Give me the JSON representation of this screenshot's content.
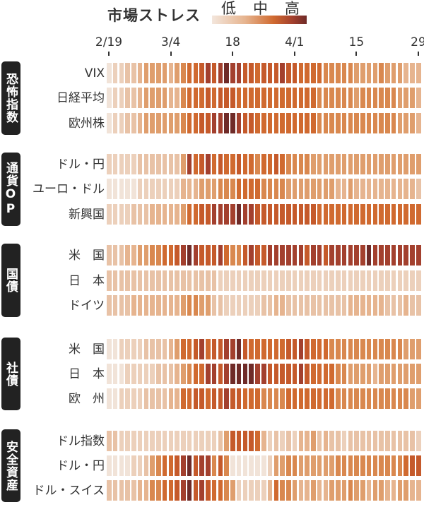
{
  "chart_data": {
    "type": "heatmap",
    "title": "市場ストレス",
    "legend": {
      "labels": [
        "低",
        "中",
        "高"
      ],
      "placement": "top-right"
    },
    "scale": {
      "min": 0,
      "max": 9
    },
    "colors": [
      "#f1e3d8",
      "#ecd0bb",
      "#e8c2a6",
      "#e6b48f",
      "#df9e6d",
      "#d9884f",
      "#d06a30",
      "#c55a2b",
      "#a3402e",
      "#6f2b28"
    ],
    "x_ticks": [
      {
        "index": 0,
        "label": "2/19"
      },
      {
        "index": 10,
        "label": "3/4"
      },
      {
        "index": 20,
        "label": "18"
      },
      {
        "index": 30,
        "label": "4/1"
      },
      {
        "index": 40,
        "label": "15"
      },
      {
        "index": 50,
        "label": "29"
      }
    ],
    "n_columns": 51,
    "groups": [
      {
        "label": "恐怖指数",
        "rows": [
          {
            "label": "VIX",
            "values": [
              0,
              1,
              1,
              2,
              2,
              3,
              4,
              4,
              4,
              4,
              3,
              4,
              5,
              6,
              6,
              7,
              8,
              7,
              8,
              9,
              8,
              8,
              7,
              7,
              6,
              7,
              7,
              7,
              8,
              7,
              7,
              6,
              6,
              6,
              6,
              5,
              5,
              5,
              5,
              5,
              4,
              4,
              4,
              4,
              5,
              4,
              4,
              4,
              3,
              3,
              3
            ]
          },
          {
            "label": "日経平均",
            "values": [
              0,
              1,
              1,
              2,
              2,
              3,
              4,
              4,
              4,
              4,
              3,
              3,
              5,
              6,
              6,
              6,
              7,
              6,
              7,
              7,
              7,
              6,
              6,
              6,
              6,
              6,
              6,
              6,
              6,
              6,
              6,
              6,
              6,
              6,
              5,
              5,
              5,
              5,
              5,
              5,
              4,
              5,
              5,
              5,
              5,
              5,
              5,
              4,
              4,
              4,
              3
            ]
          },
          {
            "label": "欧州株",
            "values": [
              0,
              1,
              1,
              2,
              2,
              3,
              4,
              4,
              4,
              4,
              4,
              4,
              5,
              6,
              6,
              7,
              7,
              8,
              8,
              9,
              9,
              8,
              7,
              7,
              6,
              6,
              6,
              6,
              6,
              6,
              6,
              6,
              6,
              6,
              5,
              5,
              5,
              5,
              5,
              5,
              5,
              5,
              5,
              5,
              5,
              5,
              5,
              4,
              4,
              4,
              3
            ]
          }
        ]
      },
      {
        "label": "通貨OP",
        "rows": [
          {
            "label": "ドル・円",
            "values": [
              1,
              1,
              1,
              1,
              1,
              2,
              2,
              2,
              2,
              2,
              2,
              2,
              4,
              8,
              6,
              7,
              8,
              6,
              7,
              6,
              6,
              7,
              6,
              6,
              5,
              6,
              6,
              7,
              6,
              5,
              5,
              5,
              5,
              4,
              4,
              4,
              4,
              4,
              4,
              4,
              4,
              4,
              4,
              4,
              4,
              4,
              4,
              4,
              4,
              4,
              4
            ]
          },
          {
            "label": "ユーロ・ドル",
            "values": [
              0,
              0,
              0,
              0,
              0,
              1,
              1,
              1,
              1,
              1,
              1,
              1,
              3,
              3,
              3,
              4,
              4,
              4,
              5,
              5,
              5,
              6,
              6,
              6,
              6,
              5,
              5,
              5,
              5,
              4,
              4,
              4,
              4,
              4,
              4,
              4,
              4,
              3,
              3,
              4,
              3,
              3,
              3,
              3,
              3,
              3,
              3,
              3,
              3,
              3,
              2
            ]
          },
          {
            "label": "新興国",
            "values": [
              1,
              1,
              1,
              1,
              2,
              2,
              2,
              3,
              3,
              3,
              3,
              3,
              4,
              6,
              6,
              7,
              7,
              8,
              8,
              8,
              8,
              9,
              8,
              8,
              7,
              7,
              7,
              7,
              7,
              7,
              7,
              7,
              7,
              7,
              6,
              6,
              6,
              6,
              6,
              6,
              6,
              6,
              6,
              6,
              6,
              6,
              6,
              6,
              6,
              6,
              6
            ]
          }
        ]
      },
      {
        "label": "国債",
        "rows": [
          {
            "label": "米　国",
            "values": [
              2,
              2,
              2,
              3,
              3,
              4,
              4,
              5,
              5,
              6,
              6,
              7,
              8,
              9,
              8,
              7,
              7,
              7,
              8,
              6,
              5,
              5,
              7,
              8,
              7,
              7,
              8,
              8,
              8,
              8,
              8,
              8,
              7,
              8,
              8,
              7,
              8,
              8,
              8,
              8,
              8,
              8,
              9,
              8,
              8,
              8,
              8,
              8,
              8,
              8,
              8
            ]
          },
          {
            "label": "日　本",
            "values": [
              2,
              2,
              2,
              2,
              2,
              2,
              2,
              2,
              2,
              2,
              2,
              2,
              2,
              2,
              2,
              2,
              2,
              2,
              1,
              1,
              1,
              1,
              1,
              1,
              1,
              1,
              1,
              1,
              1,
              1,
              1,
              1,
              1,
              1,
              1,
              1,
              1,
              1,
              1,
              1,
              1,
              1,
              1,
              1,
              1,
              1,
              1,
              1,
              1,
              1,
              1
            ]
          },
          {
            "label": "ドイツ",
            "values": [
              2,
              2,
              2,
              2,
              3,
              3,
              3,
              3,
              3,
              3,
              3,
              3,
              4,
              5,
              5,
              4,
              4,
              2,
              2,
              1,
              1,
              1,
              1,
              1,
              1,
              2,
              2,
              3,
              3,
              2,
              2,
              2,
              2,
              2,
              2,
              2,
              2,
              2,
              2,
              3,
              3,
              3,
              3,
              3,
              3,
              2,
              2,
              2,
              3,
              2,
              2
            ]
          }
        ]
      },
      {
        "label": "社債",
        "rows": [
          {
            "label": "米　国",
            "values": [
              0,
              0,
              1,
              1,
              1,
              1,
              2,
              2,
              2,
              2,
              3,
              4,
              6,
              6,
              7,
              8,
              6,
              7,
              7,
              8,
              8,
              9,
              7,
              6,
              6,
              6,
              6,
              6,
              6,
              7,
              7,
              8,
              7,
              6,
              6,
              6,
              5,
              5,
              5,
              5,
              5,
              5,
              5,
              5,
              5,
              5,
              5,
              5,
              4,
              4,
              4
            ]
          },
          {
            "label": "日　本",
            "values": [
              0,
              0,
              0,
              1,
              1,
              1,
              1,
              1,
              2,
              2,
              2,
              3,
              4,
              5,
              6,
              6,
              8,
              8,
              7,
              8,
              9,
              9,
              9,
              9,
              8,
              8,
              7,
              7,
              7,
              7,
              7,
              8,
              7,
              6,
              6,
              6,
              6,
              5,
              5,
              4,
              4,
              4,
              4,
              3,
              4,
              4,
              4,
              4,
              4,
              4,
              4
            ]
          },
          {
            "label": "欧　州",
            "values": [
              0,
              0,
              1,
              1,
              1,
              1,
              2,
              2,
              2,
              2,
              3,
              3,
              6,
              6,
              7,
              7,
              6,
              7,
              7,
              8,
              7,
              7,
              6,
              6,
              6,
              5,
              5,
              5,
              5,
              6,
              6,
              6,
              6,
              6,
              6,
              6,
              6,
              5,
              5,
              5,
              5,
              5,
              5,
              5,
              5,
              5,
              5,
              5,
              5,
              4,
              4
            ]
          }
        ]
      },
      {
        "label": "安全資産",
        "rows": [
          {
            "label": "ドル指数",
            "values": [
              2,
              2,
              1,
              1,
              1,
              1,
              1,
              1,
              1,
              1,
              1,
              1,
              1,
              1,
              1,
              1,
              1,
              1,
              2,
              4,
              7,
              7,
              7,
              7,
              6,
              3,
              1,
              2,
              1,
              2,
              1,
              3,
              3,
              4,
              2,
              3,
              2,
              2,
              1,
              2,
              2,
              2,
              2,
              2,
              2,
              2,
              2,
              2,
              2,
              2,
              1
            ]
          },
          {
            "label": "ドル・円",
            "values": [
              0,
              0,
              0,
              0,
              1,
              1,
              2,
              4,
              5,
              6,
              6,
              7,
              8,
              9,
              7,
              8,
              8,
              5,
              7,
              5,
              0,
              0,
              0,
              0,
              0,
              0,
              1,
              4,
              4,
              5,
              5,
              4,
              4,
              4,
              4,
              4,
              4,
              5,
              5,
              5,
              5,
              5,
              5,
              5,
              5,
              5,
              5,
              5,
              6,
              7,
              7
            ]
          },
          {
            "label": "ドル・スイス",
            "values": [
              2,
              2,
              2,
              2,
              2,
              3,
              3,
              5,
              5,
              6,
              6,
              7,
              8,
              9,
              7,
              8,
              7,
              6,
              6,
              5,
              4,
              1,
              1,
              1,
              1,
              1,
              3,
              6,
              5,
              5,
              4,
              3,
              3,
              4,
              3,
              3,
              4,
              4,
              4,
              5,
              4,
              4,
              3,
              4,
              4,
              3,
              3,
              4,
              4,
              3,
              3
            ]
          }
        ]
      }
    ]
  }
}
